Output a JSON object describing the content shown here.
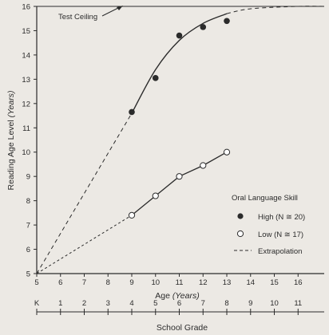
{
  "chart_data": {
    "type": "line",
    "title": "",
    "xlabel_main": "Age",
    "xlabel_unit": "(Years)",
    "ylabel_main": "Reading Age Level",
    "ylabel_unit": "(Years)",
    "x_ticks": [
      5,
      6,
      7,
      8,
      9,
      10,
      11,
      12,
      13,
      14,
      15,
      16
    ],
    "y_ticks": [
      5,
      6,
      7,
      8,
      9,
      10,
      11,
      12,
      13,
      14,
      15,
      16
    ],
    "xlim": [
      5,
      17.1
    ],
    "ylim": [
      5,
      16
    ],
    "grade_axis": {
      "label": "School Grade",
      "ticks": [
        "K",
        "1",
        "2",
        "3",
        "4",
        "5",
        "6",
        "7",
        "8",
        "9",
        "10",
        "11"
      ]
    },
    "annotation": "Test Ceiling",
    "legend": {
      "title": "Oral Language Skill",
      "entries": [
        {
          "marker": "filled",
          "label": "High (N ≅ 20)"
        },
        {
          "marker": "open",
          "label": "Low (N ≅ 17)"
        },
        {
          "marker": "dashed",
          "label": "Extrapolation"
        }
      ]
    },
    "series": [
      {
        "name": "High (N ≅ 20)",
        "marker": "filled",
        "points": [
          [
            9,
            11.65
          ],
          [
            10,
            13.05
          ],
          [
            11,
            14.8
          ],
          [
            12,
            15.15
          ],
          [
            13,
            15.4
          ]
        ],
        "fit": [
          [
            9,
            11.6
          ],
          [
            10,
            13.4
          ],
          [
            11,
            14.6
          ],
          [
            12,
            15.3
          ],
          [
            13,
            15.7
          ]
        ],
        "extrapolation_start": [
          5,
          5
        ],
        "extrapolation_end": [
          [
            14,
            15.9
          ],
          [
            16,
            16
          ],
          [
            17.1,
            16
          ]
        ]
      },
      {
        "name": "Low (N ≅ 17)",
        "marker": "open",
        "points": [
          [
            9,
            7.4
          ],
          [
            10,
            8.2
          ],
          [
            11,
            9.0
          ],
          [
            12,
            9.45
          ],
          [
            13,
            10.0
          ]
        ],
        "extrapolation_start": [
          5,
          5
        ]
      }
    ]
  }
}
